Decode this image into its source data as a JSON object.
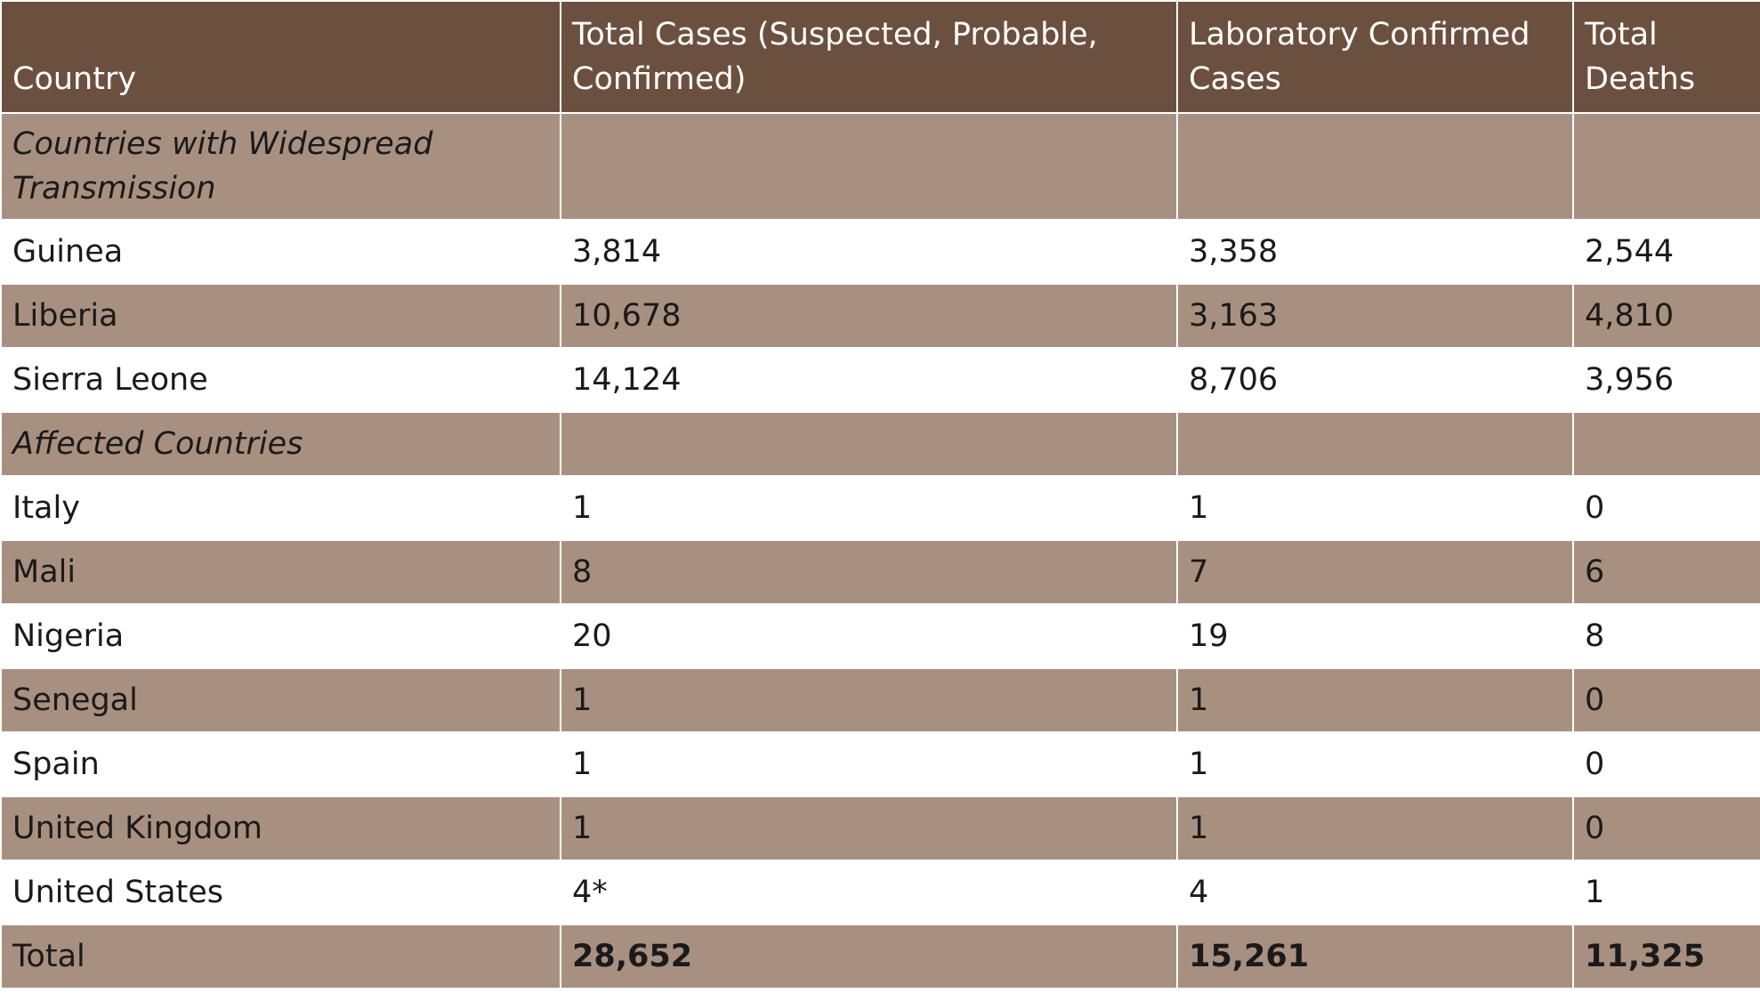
{
  "table": {
    "headers": [
      "Country",
      "Total Cases (Suspected, Probable, Confirmed)",
      "Laboratory Confirmed Cases",
      "Total Deaths"
    ],
    "sections": [
      {
        "label": "Countries with Widespread Transmission",
        "rows": [
          {
            "country": "Guinea",
            "total_cases": "3,814",
            "lab_confirmed": "3,358",
            "deaths": "2,544"
          },
          {
            "country": "Liberia",
            "total_cases": "10,678",
            "lab_confirmed": "3,163",
            "deaths": "4,810"
          },
          {
            "country": "Sierra Leone",
            "total_cases": "14,124",
            "lab_confirmed": "8,706",
            "deaths": "3,956"
          }
        ]
      },
      {
        "label": "Affected Countries",
        "rows": [
          {
            "country": "Italy",
            "total_cases": "1",
            "lab_confirmed": "1",
            "deaths": "0"
          },
          {
            "country": "Mali",
            "total_cases": "8",
            "lab_confirmed": "7",
            "deaths": "6"
          },
          {
            "country": "Nigeria",
            "total_cases": "20",
            "lab_confirmed": "19",
            "deaths": "8"
          },
          {
            "country": "Senegal",
            "total_cases": "1",
            "lab_confirmed": "1",
            "deaths": "0"
          },
          {
            "country": "Spain",
            "total_cases": "1",
            "lab_confirmed": "1",
            "deaths": "0"
          },
          {
            "country": "United Kingdom",
            "total_cases": "1",
            "lab_confirmed": "1",
            "deaths": "0"
          },
          {
            "country": "United States",
            "total_cases": "4*",
            "lab_confirmed": "4",
            "deaths": "1"
          }
        ]
      }
    ],
    "total": {
      "label": "Total",
      "total_cases": "28,652",
      "lab_confirmed": "15,261",
      "deaths": "11,325"
    }
  },
  "colors": {
    "header_bg": "#6b5040",
    "shaded_row_bg": "#a89080",
    "plain_row_bg": "#ffffff"
  }
}
